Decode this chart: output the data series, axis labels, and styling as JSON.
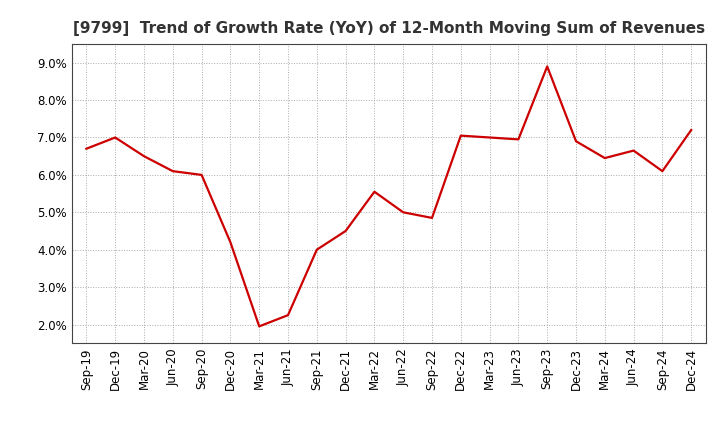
{
  "title": "[9799]  Trend of Growth Rate (YoY) of 12-Month Moving Sum of Revenues",
  "line_color": "#cc0000",
  "background_color": "#ffffff",
  "grid_color": "#aaaaaa",
  "x_labels": [
    "Sep-19",
    "Dec-19",
    "Mar-20",
    "Jun-20",
    "Sep-20",
    "Dec-20",
    "Mar-21",
    "Jun-21",
    "Sep-21",
    "Dec-21",
    "Mar-22",
    "Jun-22",
    "Sep-22",
    "Dec-22",
    "Mar-23",
    "Jun-23",
    "Sep-23",
    "Dec-23",
    "Mar-24",
    "Jun-24",
    "Sep-24",
    "Dec-24"
  ],
  "y_values": [
    6.7,
    7.0,
    6.5,
    6.1,
    6.0,
    4.2,
    1.95,
    2.25,
    4.0,
    4.5,
    5.55,
    5.0,
    4.85,
    7.05,
    7.0,
    6.95,
    8.9,
    6.9,
    6.45,
    6.65,
    6.1,
    7.2
  ],
  "ylim": [
    1.5,
    9.5
  ],
  "yticks": [
    2.0,
    3.0,
    4.0,
    5.0,
    6.0,
    7.0,
    8.0,
    9.0
  ],
  "title_fontsize": 11,
  "tick_fontsize": 8.5,
  "line_width": 1.6
}
